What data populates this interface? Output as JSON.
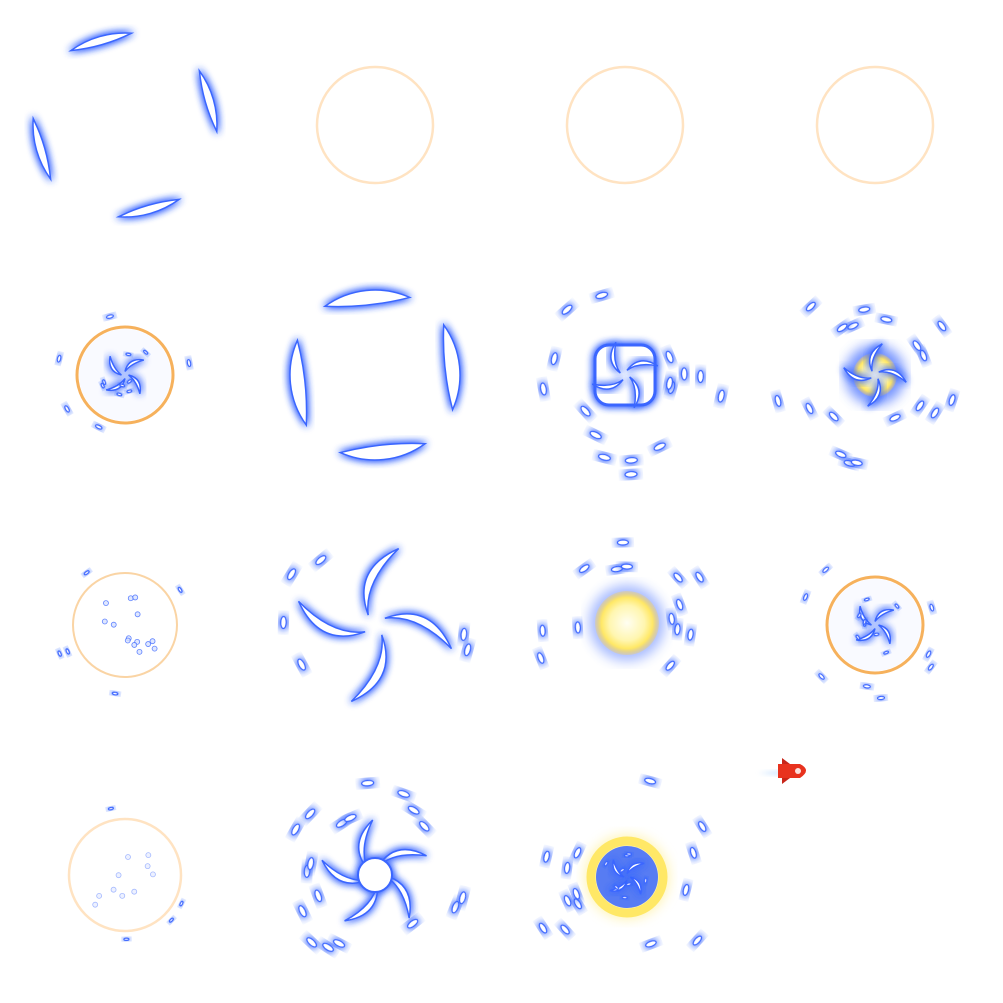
{
  "sprite_sheet": {
    "columns": 4,
    "rows": 4,
    "colors": {
      "glow_blue": "#3a66ff",
      "core_white": "#ffffff",
      "ring_orange": "#f5a94a",
      "ring_pale": "#ffe3c2",
      "fire_yellow": "#ffe866",
      "rocket_red": "#e8321e"
    },
    "frames": [
      {
        "kind": "arcs",
        "count": 4,
        "thick": 0.35,
        "ring": "none",
        "particles": 0
      },
      {
        "kind": "ring",
        "ring": "pale"
      },
      {
        "kind": "ring",
        "ring": "pale"
      },
      {
        "kind": "ring",
        "ring": "pale"
      },
      {
        "kind": "swirl-small",
        "ring": "orange",
        "particles": 5
      },
      {
        "kind": "arcs",
        "count": 4,
        "thick": 0.6,
        "ring": "none",
        "particles": 0
      },
      {
        "kind": "vortex-square",
        "ring": "none",
        "particles": 16
      },
      {
        "kind": "vortex-glow",
        "ring": "none",
        "particles": 18
      },
      {
        "kind": "dots",
        "ring": "orange-faint",
        "particles": 5
      },
      {
        "kind": "pinwheel",
        "blades": 4,
        "ring": "none",
        "particles": 6
      },
      {
        "kind": "fireball",
        "ring": "none",
        "particles": 14
      },
      {
        "kind": "swirl-small",
        "ring": "orange",
        "particles": 8
      },
      {
        "kind": "dots-faint",
        "ring": "pale",
        "particles": 4
      },
      {
        "kind": "vortex-hollow",
        "ring": "none",
        "particles": 18
      },
      {
        "kind": "fire-ring",
        "ring": "gold",
        "particles": 14
      },
      {
        "kind": "empty"
      }
    ],
    "extra_sprite": {
      "name": "rocket",
      "icon": "rocket-icon"
    }
  }
}
